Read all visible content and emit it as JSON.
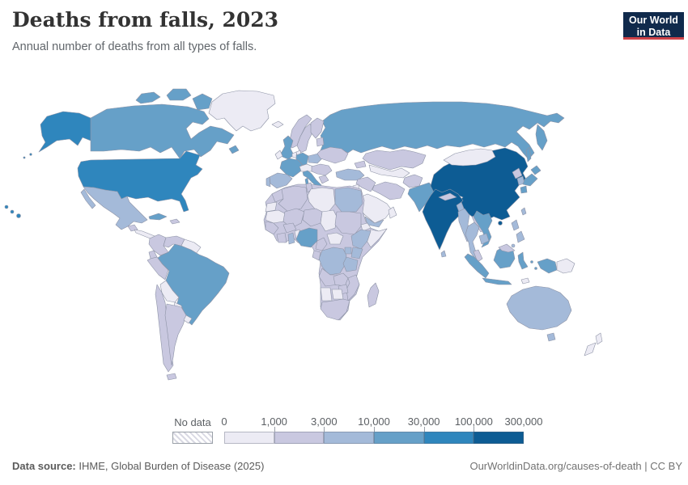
{
  "header": {
    "title": "Deaths from falls, 2023",
    "subtitle": "Annual number of deaths from all types of falls.",
    "logo": {
      "line1": "Our World",
      "line2": "in Data",
      "bg_color": "#102A4C",
      "accent_color": "#CE4349"
    }
  },
  "legend": {
    "no_data_label": "No data",
    "tick_labels": [
      "0",
      "1,000",
      "3,000",
      "10,000",
      "30,000",
      "100,000",
      "300,000"
    ],
    "bin_colors": [
      "#ECEBF4",
      "#C9C8E0",
      "#A4BAD9",
      "#66A0C8",
      "#2F86BD",
      "#0D5C94"
    ],
    "no_data_hatch_color": "#d9d9e3"
  },
  "footer": {
    "source_label": "Data source:",
    "source_text": " IHME, Global Burden of Disease (2025)",
    "right_text": "OurWorldinData.org/causes-of-death | CC BY"
  },
  "map": {
    "border_color": "#8d93a6",
    "regions": {
      "greenland": 0,
      "canada": 3,
      "arctic-a": 3,
      "arctic-b": 3,
      "arctic-c": 3,
      "newfoundland": 3,
      "alaska": 4,
      "usa": 4,
      "hawaii": 4,
      "mexico": 2,
      "guatemala": 1,
      "central-america": 0,
      "cuba": 3,
      "hispaniola": 1,
      "colombia": 1,
      "venezuela": 1,
      "guyanas": 0,
      "ecuador": 1,
      "peru": 1,
      "brazil": 3,
      "bolivia": 0,
      "paraguay": 0,
      "chile": 1,
      "argentina": 1,
      "uruguay": 0,
      "iceland": 0,
      "norway": 1,
      "sweden": 1,
      "finland": 1,
      "baltics": 1,
      "denmark": 0,
      "uk": 3,
      "ireland": 0,
      "benelux": 0,
      "germany": 3,
      "france": 3,
      "spain": 2,
      "portugal": 2,
      "poland": 2,
      "central-europe": 0,
      "italy": 3,
      "balkans": 1,
      "greece": 1,
      "ukraine": 1,
      "russia": 3,
      "kazakhstan": 1,
      "central-asia": 0,
      "caucasus": 1,
      "turkey": 2,
      "iraq": 1,
      "iran": 1,
      "levant": 0,
      "afghanistan": 1,
      "pakistan": 3,
      "saudi-arabia": 0,
      "yemen": 2,
      "oman": 0,
      "india": 5,
      "sri-lanka": 2,
      "nepal": 1,
      "bangladesh": 2,
      "china": 5,
      "taiwan": 2,
      "mongolia": 0,
      "north-korea": 1,
      "south-korea": 2,
      "japan": 3,
      "myanmar": 2,
      "thailand": 2,
      "laos": 1,
      "vietnam": 3,
      "cambodia": 2,
      "malaysia": 1,
      "philippines": 2,
      "indonesia": 3,
      "papua-new-guinea": 0,
      "timor": 0,
      "australia": 2,
      "new-zealand": 0,
      "africa-base": 1,
      "morocco": 1,
      "western-sahara": 0,
      "algeria": 1,
      "tunisia": 1,
      "libya": 0,
      "egypt": 2,
      "mauritania": 0,
      "mali": 1,
      "niger": 1,
      "chad": 0,
      "sudan": 1,
      "eritrea": 0,
      "senegal": 1,
      "ivory-coast": 1,
      "ghana": 2,
      "burkina-faso": 1,
      "benin": 0,
      "nigeria": 3,
      "cameroon": 1,
      "car": 0,
      "somalia": 0,
      "ethiopia": 2,
      "kenya": 2,
      "uganda": 2,
      "drc": 2,
      "tanzania": 2,
      "gabon": 1,
      "angola": 1,
      "zambia": 1,
      "mozambique": 1,
      "zimbabwe": 1,
      "namibia": 0,
      "botswana": 0,
      "south-africa": 1,
      "madagascar": 1
    }
  },
  "chart_data": {
    "type": "heatmap",
    "subtype": "choropleth-world-map",
    "title": "Deaths from falls, 2023",
    "subtitle": "Annual number of deaths from all types of falls.",
    "legend_position": "bottom",
    "bin_thresholds": [
      0,
      1000,
      3000,
      10000,
      30000,
      100000,
      300000
    ],
    "bin_labels": [
      "0–1,000",
      "1,000–3,000",
      "3,000–10,000",
      "10,000–30,000",
      "30,000–100,000",
      "100,000–300,000"
    ],
    "bin_colors": [
      "#ECEBF4",
      "#C9C8E0",
      "#A4BAD9",
      "#66A0C8",
      "#2F86BD",
      "#0D5C94"
    ],
    "countries": {
      "China": "100,000–300,000",
      "India": "100,000–300,000",
      "United States": "30,000–100,000",
      "Canada": "10,000–30,000",
      "Brazil": "10,000–30,000",
      "Russia": "10,000–30,000",
      "United Kingdom": "10,000–30,000",
      "France": "10,000–30,000",
      "Germany": "10,000–30,000",
      "Italy": "10,000–30,000",
      "Pakistan": "10,000–30,000",
      "Vietnam": "10,000–30,000",
      "Japan": "10,000–30,000",
      "Indonesia": "10,000–30,000",
      "Nigeria": "10,000–30,000",
      "Cuba": "10,000–30,000",
      "Mexico": "3,000–10,000",
      "Spain": "3,000–10,000",
      "Poland": "3,000–10,000",
      "Turkey": "3,000–10,000",
      "Egypt": "3,000–10,000",
      "Ethiopia": "3,000–10,000",
      "Democratic Republic of Congo": "3,000–10,000",
      "Tanzania": "3,000–10,000",
      "Kenya": "3,000–10,000",
      "Australia": "3,000–10,000",
      "Thailand": "3,000–10,000",
      "Myanmar": "3,000–10,000",
      "Philippines": "3,000–10,000",
      "South Korea": "3,000–10,000",
      "Bangladesh": "3,000–10,000",
      "Yemen": "3,000–10,000",
      "Ghana": "3,000–10,000",
      "Colombia": "1,000–3,000",
      "Venezuela": "1,000–3,000",
      "Peru": "1,000–3,000",
      "Argentina": "1,000–3,000",
      "Chile": "1,000–3,000",
      "Norway": "1,000–3,000",
      "Sweden": "1,000–3,000",
      "Finland": "1,000–3,000",
      "Ukraine": "1,000–3,000",
      "Kazakhstan": "1,000–3,000",
      "Iran": "1,000–3,000",
      "Iraq": "1,000–3,000",
      "Afghanistan": "1,000–3,000",
      "Morocco": "1,000–3,000",
      "Algeria": "1,000–3,000",
      "Sudan": "1,000–3,000",
      "Angola": "1,000–3,000",
      "Mozambique": "1,000–3,000",
      "South Africa": "1,000–3,000",
      "Madagascar": "1,000–3,000",
      "Malaysia": "1,000–3,000",
      "North Korea": "1,000–3,000",
      "Greenland": "0–1,000",
      "Bolivia": "0–1,000",
      "Paraguay": "0–1,000",
      "Uruguay": "0–1,000",
      "Ireland": "0–1,000",
      "Iceland": "0–1,000",
      "Mongolia": "0–1,000",
      "Saudi Arabia": "0–1,000",
      "Libya": "0–1,000",
      "Chad": "0–1,000",
      "Somalia": "0–1,000",
      "Namibia": "0–1,000",
      "Botswana": "0–1,000",
      "New Zealand": "0–1,000",
      "Papua New Guinea": "0–1,000"
    }
  }
}
